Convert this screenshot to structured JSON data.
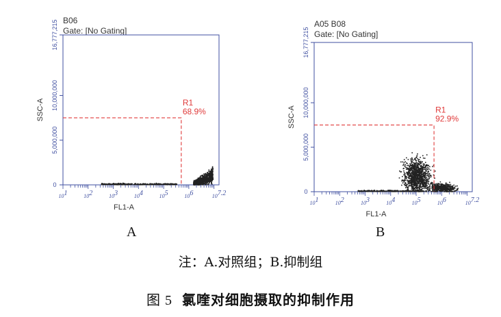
{
  "chart_data": [
    {
      "type": "scatter",
      "sample": "B06",
      "gate": "Gate: [No Gating]",
      "xlabel": "FL1-A",
      "ylabel": "SSC-A",
      "x_scale": "log",
      "xlim": [
        10,
        15800000
      ],
      "x_ticks": [
        "10^1",
        "10^2",
        "10^3",
        "10^4",
        "10^5",
        "10^6",
        "10^7.2"
      ],
      "ylim": [
        0,
        16777216
      ],
      "y_ticks": [
        "0",
        "5,000,000",
        "10,000,000",
        "16,777,215"
      ],
      "region": {
        "name": "R1",
        "percent": "68.9%",
        "x_min": 500000,
        "y_max": 7500000
      },
      "populations": [
        {
          "x_center_log": 6.4,
          "x_spread_log": 0.35,
          "y_center": 800000,
          "y_spread": 350000,
          "count": 900,
          "shape": "rising-tail"
        },
        {
          "x_center_log": 4.0,
          "x_spread_log": 1.5,
          "y_center": 80000,
          "y_spread": 60000,
          "count": 420,
          "shape": "baseline"
        }
      ],
      "sublabel": "A"
    },
    {
      "type": "scatter",
      "sample": "A05 B08",
      "gate": "Gate: [No Gating]",
      "xlabel": "FL1-A",
      "ylabel": "SSC-A",
      "x_scale": "log",
      "xlim": [
        10,
        15800000
      ],
      "x_ticks": [
        "10^1",
        "10^2",
        "10^3",
        "10^4",
        "10^5",
        "10^6",
        "10^7.2"
      ],
      "ylim": [
        0,
        16777216
      ],
      "y_ticks": [
        "0",
        "5,000,000",
        "10,000,000",
        "16,777,215"
      ],
      "region": {
        "name": "R1",
        "percent": "92.9%",
        "x_min": 500000,
        "y_max": 7500000
      },
      "populations": [
        {
          "x_center_log": 5.0,
          "x_spread_log": 0.25,
          "y_center": 1800000,
          "y_spread": 900000,
          "count": 1100,
          "shape": "cloud"
        },
        {
          "x_center_log": 6.0,
          "x_spread_log": 0.25,
          "y_center": 400000,
          "y_spread": 250000,
          "count": 500,
          "shape": "cloud"
        },
        {
          "x_center_log": 4.0,
          "x_spread_log": 1.3,
          "y_center": 80000,
          "y_spread": 60000,
          "count": 350,
          "shape": "baseline"
        }
      ],
      "sublabel": "B"
    }
  ],
  "note": "注：A.对照组；B.抑制组",
  "caption": {
    "number": "图 5",
    "text": "氯喹对细胞摄取的抑制作用"
  },
  "colors": {
    "axis": "#3f4fa0",
    "region": "#e03a3a",
    "dots": "#222222",
    "text": "#333333"
  }
}
